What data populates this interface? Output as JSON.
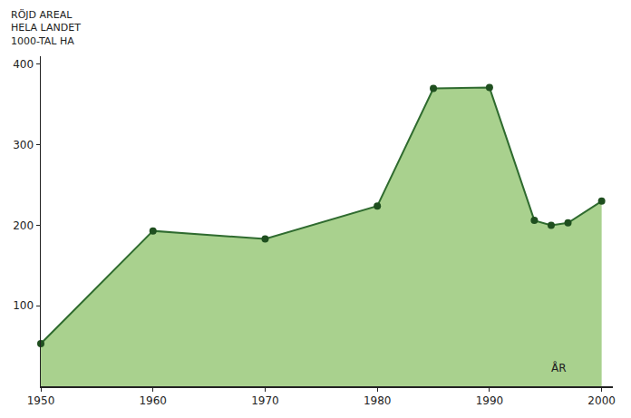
{
  "chart_data": {
    "type": "area",
    "y_label": [
      "RÖJD AREAL",
      "HELA LANDET",
      "1000-TAL HA"
    ],
    "x_label": "ÅR",
    "x": [
      1950,
      1960,
      1970,
      1980,
      1985,
      1990,
      1994,
      1995.5,
      1997,
      2000
    ],
    "values": [
      53,
      193,
      183,
      224,
      370,
      371,
      206,
      200,
      203,
      230
    ],
    "color": "#2f6b2f",
    "fill_color": "#a9d18e",
    "marker": "circle",
    "xlim": [
      1950,
      2001
    ],
    "xticks": [
      1950,
      1960,
      1970,
      1980,
      1990,
      2000
    ],
    "ylim": [
      0,
      410
    ],
    "yticks": [
      100,
      200,
      300,
      400
    ],
    "grid": false
  }
}
